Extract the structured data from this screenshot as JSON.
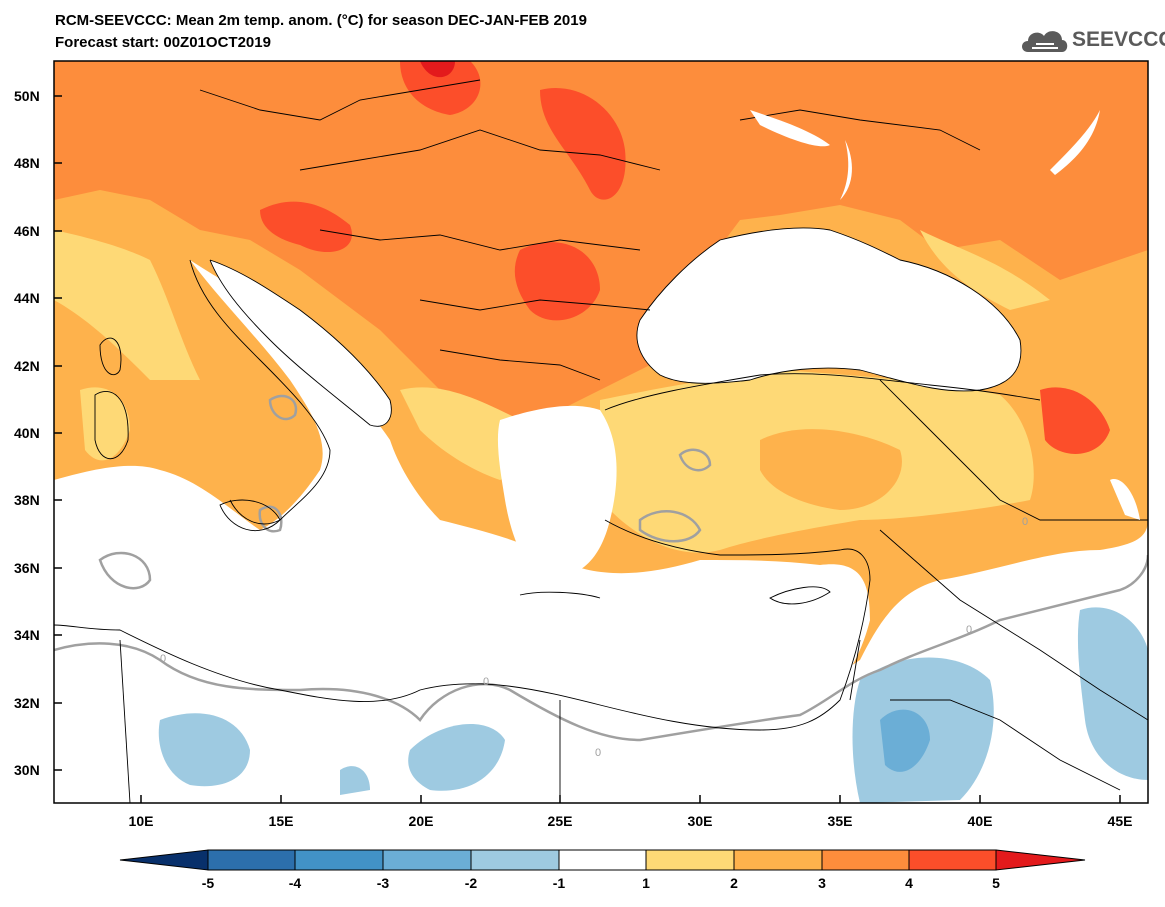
{
  "header": {
    "title_line1": "RCM-SEEVCCC: Mean 2m temp. anom. (°C) for season DEC-JAN-FEB 2019",
    "title_line2": "Forecast start: 00Z01OCT2019",
    "logo_text": "SEEVCCC",
    "logo_icon": "cloud-icon"
  },
  "axes": {
    "lat_labels": [
      "50N",
      "48N",
      "46N",
      "44N",
      "42N",
      "40N",
      "38N",
      "36N",
      "34N",
      "32N",
      "30N"
    ],
    "lon_labels": [
      "10E",
      "15E",
      "20E",
      "25E",
      "30E",
      "35E",
      "40E",
      "45E"
    ]
  },
  "contour_label": "0",
  "colorbar": {
    "levels": [
      "-5",
      "-4",
      "-3",
      "-2",
      "-1",
      "1",
      "2",
      "3",
      "4",
      "5"
    ],
    "colors": [
      "#08306b",
      "#2c6fac",
      "#4292c6",
      "#6baed6",
      "#9ecae1",
      "#ffffff",
      "#fed976",
      "#feb24c",
      "#fd8d3c",
      "#fc4e2a",
      "#e31a1c"
    ]
  },
  "field_colors": {
    "sea": "#ffffff",
    "anom_1_2": "#fed976",
    "anom_2_3": "#feb24c",
    "anom_3_4": "#fd8d3c",
    "anom_4_5": "#fc4e2a",
    "anom_gt5": "#e31a1c",
    "anom_m1_m2": "#9ecae1",
    "anom_m2_m3": "#6baed6",
    "zero_contour": "#a0a0a0",
    "borders": "#000000"
  }
}
